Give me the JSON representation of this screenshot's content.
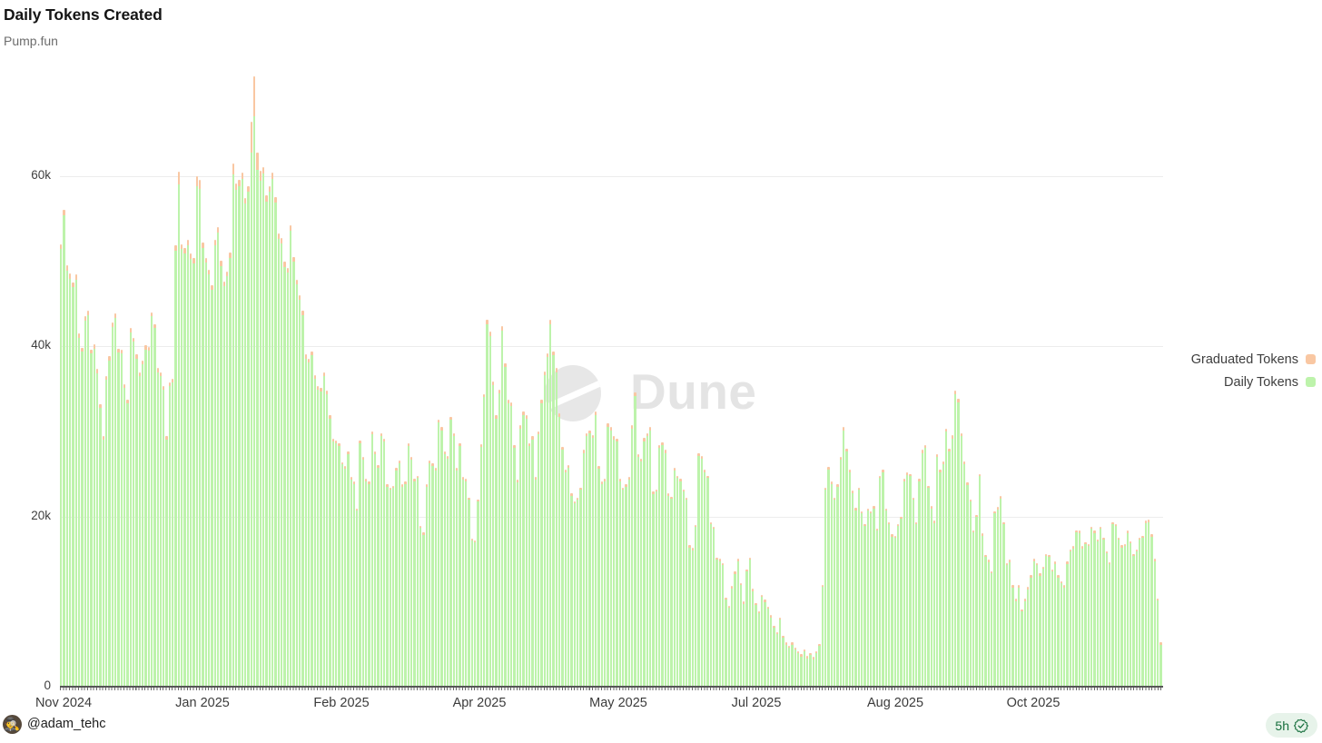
{
  "header": {
    "title": "Daily Tokens Created",
    "subtitle": "Pump.fun"
  },
  "watermark": {
    "text": "Dune"
  },
  "legend": {
    "items": [
      {
        "label": "Graduated Tokens",
        "color": "#f9c7a2"
      },
      {
        "label": "Daily Tokens",
        "color": "#bdf3ab"
      }
    ]
  },
  "footer": {
    "author_handle": "@adam_tehc",
    "avatar_icon": "🕵",
    "badge_time": "5h"
  },
  "axes": {
    "y_ticks": [
      {
        "k": 60,
        "label": "60k"
      },
      {
        "k": 40,
        "label": "40k"
      },
      {
        "k": 20,
        "label": "20k"
      },
      {
        "k": 0,
        "label": "0"
      }
    ],
    "x_ticks": [
      {
        "x": 70,
        "label": "Nov 2024"
      },
      {
        "x": 223,
        "label": "Jan 2025"
      },
      {
        "x": 376,
        "label": "Feb 2025"
      },
      {
        "x": 528,
        "label": "Apr 2025"
      },
      {
        "x": 681,
        "label": "May 2025"
      },
      {
        "x": 833,
        "label": "Jul 2025"
      },
      {
        "x": 986,
        "label": "Aug 2025"
      },
      {
        "x": 1138,
        "label": "Oct 2025"
      }
    ]
  },
  "chart_data": {
    "type": "bar",
    "stacked": true,
    "title": "Daily Tokens Created",
    "subtitle": "Pump.fun",
    "unit": "tokens per day (thousands)",
    "granularity": "daily",
    "x_range": [
      "Nov 2024",
      "Nov 2025"
    ],
    "ylim_k": [
      0,
      73
    ],
    "grid": true,
    "legend_position": "right",
    "series_names": [
      "Daily Tokens",
      "Graduated Tokens"
    ],
    "colors": {
      "daily": "#bdf3ab",
      "graduated": "#f9c7a2"
    },
    "stack_total_values_k": [
      52,
      56,
      49.5,
      48.5,
      47.5,
      48.4,
      41.5,
      39.8,
      43.5,
      44.2,
      39.6,
      40.2,
      37.3,
      33.2,
      29.4,
      36.5,
      38.8,
      42.8,
      43.8,
      39.7,
      39.6,
      35.5,
      33.7,
      42.1,
      41,
      39,
      36.9,
      38.3,
      40.1,
      39.9,
      44,
      42.6,
      37.4,
      36.9,
      35.3,
      29.4,
      35.7,
      36.2,
      51.8,
      60.5,
      52,
      51.5,
      52.5,
      50.9,
      50.3,
      60,
      59.5,
      52.2,
      50.4,
      49,
      47.2,
      52.5,
      54,
      50,
      47.6,
      48.8,
      51,
      61.4,
      59.1,
      59.5,
      60.4,
      57.4,
      58.8,
      66.4,
      71.7,
      62.7,
      60.6,
      61,
      57.7,
      58.8,
      60.4,
      57.5,
      53.2,
      52.7,
      49.9,
      49.2,
      54.2,
      50.5,
      47.8,
      46,
      44.2,
      39,
      38.5,
      39.4,
      36.6,
      35.3,
      35.1,
      36.9,
      34.8,
      31.9,
      29.1,
      28.9,
      28.6,
      26.4,
      25.9,
      27.6,
      24.6,
      24.1,
      20.9,
      28.9,
      27,
      24.4,
      24.1,
      30,
      27.6,
      26,
      29.8,
      29.1,
      23.8,
      23.4,
      23.6,
      25.7,
      26.6,
      23.8,
      24.1,
      28.6,
      27,
      24.4,
      24.8,
      18.9,
      18.1,
      23.8,
      26.6,
      26.2,
      25.7,
      31.4,
      30.5,
      27.6,
      27.1,
      31.7,
      29.8,
      25.7,
      28.6,
      24.6,
      24.4,
      22.2,
      17.4,
      17.2,
      22,
      28.5,
      34.4,
      43.1,
      41.7,
      35.8,
      31.9,
      34.9,
      42.3,
      38,
      33.7,
      33.4,
      28.4,
      24.3,
      30.7,
      32.3,
      31.9,
      28.6,
      29.4,
      24.6,
      30,
      33.7,
      37,
      39.2,
      43.1,
      39.4,
      37.4,
      32.1,
      28.2,
      25.5,
      26,
      22.7,
      21.8,
      22.2,
      23.4,
      27.8,
      29.8,
      30.1,
      29.6,
      32.3,
      25.9,
      24.1,
      24.4,
      30.9,
      30.5,
      29.4,
      29.1,
      24.4,
      23.4,
      23.8,
      24.6,
      30.7,
      34.6,
      27.3,
      26.8,
      29.2,
      29.8,
      30.5,
      22.9,
      23.2,
      28.4,
      28.7,
      27.8,
      22.7,
      22.3,
      25.7,
      24.8,
      24.4,
      23.2,
      22.2,
      16.6,
      16.3,
      19,
      27.4,
      27.1,
      25.5,
      24.8,
      19.3,
      18.8,
      15.2,
      15,
      14.5,
      10.5,
      9.5,
      11.8,
      13.5,
      15,
      12.2,
      10,
      13.8,
      15.2,
      11.5,
      9.8,
      8.9,
      10.8,
      10.2,
      9.4,
      8.4,
      7.2,
      6.4,
      8.1,
      6,
      5.2,
      4.8,
      5.2,
      4.6,
      4.2,
      3.8,
      4.4,
      3.6,
      4,
      3.5,
      4.2,
      5,
      12,
      23.4,
      25.8,
      24.1,
      22.2,
      23.8,
      27,
      30.5,
      28,
      25.5,
      23,
      21,
      23.4,
      20.6,
      19.1,
      20.9,
      20.6,
      21.2,
      18.6,
      24.8,
      25.5,
      20.9,
      19.3,
      17.9,
      17.7,
      19.1,
      20,
      24.4,
      25.2,
      25,
      22.2,
      19.3,
      24.4,
      27.8,
      28.4,
      23.6,
      21.2,
      19.5,
      27.3,
      25.5,
      26.5,
      30.3,
      28,
      29.5,
      34.8,
      33.8,
      29.8,
      26.5,
      24,
      22,
      18.4,
      20.2,
      25,
      18,
      15.5,
      14.9,
      13.6,
      20.6,
      21.1,
      22.4,
      19.3,
      14.5,
      14.9,
      11.9,
      10.3,
      11.9,
      9.1,
      10.3,
      11.7,
      13.1,
      15,
      14.5,
      13.3,
      14.1,
      15.6,
      15.5,
      13.8,
      14.7,
      13.1,
      12.4,
      11.9,
      14.7,
      16.1,
      16.5,
      18.4,
      18.3,
      16.5,
      17,
      16.8,
      18.8,
      18.3,
      17.3,
      18.8,
      17.5,
      15.9,
      14.6,
      19.3,
      19.1,
      17.5,
      16.6,
      16.8,
      18.3,
      17.1,
      15.6,
      16.1,
      17.5,
      17.7,
      19.5,
      19.6,
      17.9,
      15,
      10.4,
      5.2
    ],
    "graduated_estimate": {
      "note": "graduated tokens shown as small tip on each stacked bar",
      "default_ratio_of_total": 0.012,
      "min_k": 0.25,
      "overrides_k_by_day_index": {
        "39": 1.5,
        "45": 1.2,
        "46": 1.0,
        "57": 1.2,
        "63": 3.7,
        "64": 4.7,
        "65": 2.0,
        "66": 1.2
      }
    }
  }
}
